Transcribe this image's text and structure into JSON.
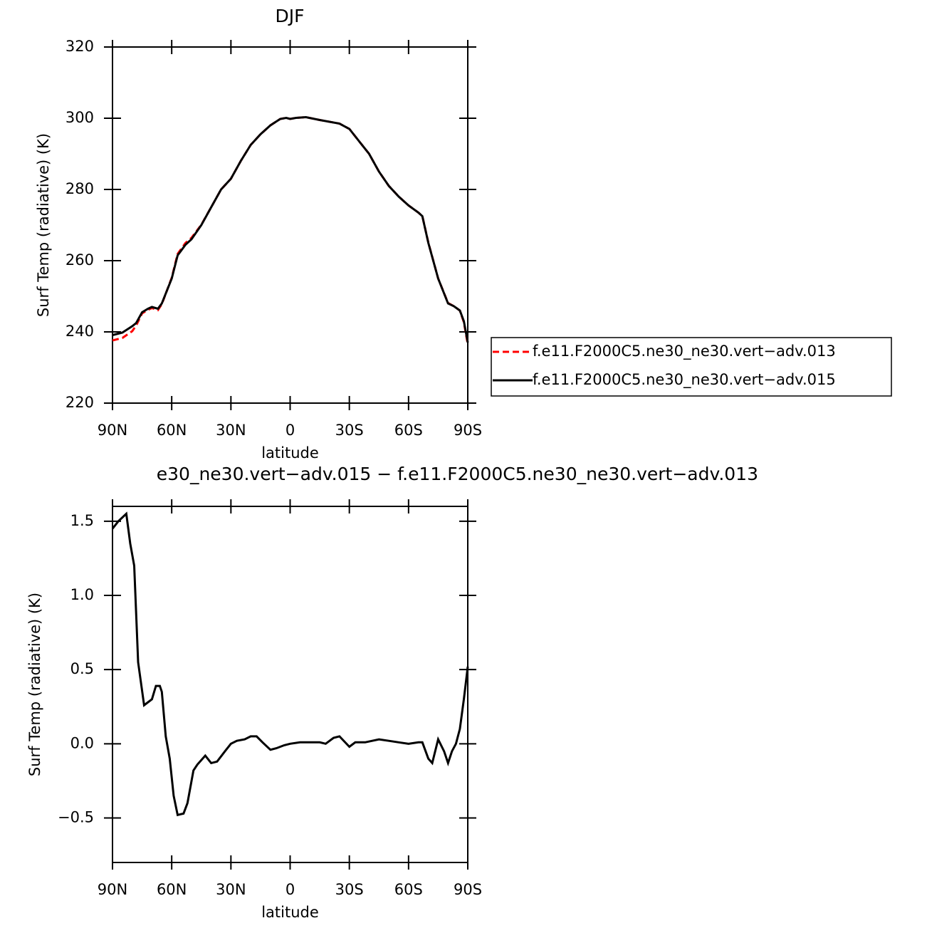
{
  "chart_data": [
    {
      "type": "line",
      "title": "DJF",
      "xlabel": "latitude",
      "ylabel": "Surf Temp (radiative) (K)",
      "xlim": [
        90,
        -90
      ],
      "ylim": [
        220,
        320
      ],
      "xticks": [
        {
          "value": 90,
          "label": "90N"
        },
        {
          "value": 60,
          "label": "60N"
        },
        {
          "value": 30,
          "label": "30N"
        },
        0,
        {
          "value": -30,
          "label": "30S"
        },
        {
          "value": -60,
          "label": "60S"
        },
        {
          "value": -90,
          "label": "90S"
        }
      ],
      "yticks": [
        220,
        240,
        260,
        280,
        300,
        320
      ],
      "x": [
        90,
        85,
        80,
        78,
        75,
        72,
        70,
        67,
        65,
        60,
        57,
        53,
        50,
        45,
        40,
        35,
        30,
        25,
        20,
        15,
        10,
        5,
        2,
        0,
        -3,
        -8,
        -15,
        -25,
        -30,
        -35,
        -40,
        -45,
        -50,
        -55,
        -60,
        -65,
        -67,
        -70,
        -75,
        -80,
        -83,
        -86,
        -88,
        -90
      ],
      "series": [
        {
          "name": "f.e11.F2000C5.ne30_ne30.vert−adv.013",
          "color": "#ff0000",
          "dashed": true,
          "values": [
            237.6,
            238.3,
            240.2,
            241.8,
            245.2,
            246.2,
            246.7,
            246.1,
            247.8,
            255.2,
            261.9,
            265,
            266.4,
            270.1,
            275,
            280,
            283,
            288,
            292.5,
            295.5,
            298,
            299.8,
            300.1,
            299.8,
            300.1,
            300.3,
            299.5,
            298.5,
            297,
            293.5,
            290,
            285,
            281,
            278,
            275.5,
            273.5,
            272.5,
            265.1,
            255,
            248.1,
            247.2,
            246,
            242.7,
            236.5
          ]
        },
        {
          "name": "f.e11.F2000C5.ne30_ne30.vert−adv.015",
          "color": "#000000",
          "dashed": false,
          "values": [
            239.1,
            239.8,
            241.6,
            242.5,
            245.5,
            246.5,
            247,
            246.5,
            248,
            255,
            261.5,
            264.5,
            266,
            270,
            275,
            280,
            283,
            288,
            292.5,
            295.5,
            298,
            299.8,
            300.1,
            299.8,
            300.1,
            300.3,
            299.5,
            298.5,
            297,
            293.5,
            290,
            285,
            281,
            278,
            275.5,
            273.5,
            272.5,
            265,
            255,
            248,
            247.2,
            246,
            243,
            237
          ]
        }
      ]
    },
    {
      "type": "line",
      "title": "e30_ne30.vert−adv.015 − f.e11.F2000C5.ne30_ne30.vert−adv.013",
      "xlabel": "latitude",
      "ylabel": "Surf Temp (radiative) (K)",
      "xlim": [
        90,
        -90
      ],
      "ylim": [
        -0.8,
        1.6
      ],
      "xticks": [
        {
          "value": 90,
          "label": "90N"
        },
        {
          "value": 60,
          "label": "60N"
        },
        {
          "value": 30,
          "label": "30N"
        },
        0,
        {
          "value": -30,
          "label": "30S"
        },
        {
          "value": -60,
          "label": "60S"
        },
        {
          "value": -90,
          "label": "90S"
        }
      ],
      "yticks": [
        {
          "value": -0.5,
          "label": "−0.5"
        },
        {
          "value": 0,
          "label": "0.0"
        },
        0.5,
        {
          "value": 1,
          "label": "1.0"
        },
        1.5
      ],
      "x": [
        90,
        87,
        83,
        81,
        79,
        77,
        74,
        72,
        70,
        68,
        66,
        65,
        63,
        61,
        59,
        57,
        54,
        52,
        49,
        47,
        43,
        40,
        37,
        33,
        30,
        27,
        23,
        20,
        17,
        14,
        10,
        7,
        3,
        0,
        -5,
        -10,
        -15,
        -18,
        -22,
        -25,
        -30,
        -33,
        -38,
        -45,
        -50,
        -55,
        -60,
        -65,
        -67,
        -70,
        -72,
        -75,
        -78,
        -80,
        -82,
        -84,
        -86,
        -88,
        -90
      ],
      "series": [
        {
          "color": "#000000",
          "dashed": false,
          "values": [
            1.45,
            1.5,
            1.55,
            1.35,
            1.2,
            0.55,
            0.26,
            0.28,
            0.3,
            0.39,
            0.39,
            0.35,
            0.05,
            -0.1,
            -0.35,
            -0.48,
            -0.47,
            -0.4,
            -0.18,
            -0.14,
            -0.08,
            -0.13,
            -0.12,
            -0.05,
            0,
            0.02,
            0.03,
            0.05,
            0.05,
            0.01,
            -0.04,
            -0.03,
            -0.01,
            0,
            0.01,
            0.01,
            0.01,
            0,
            0.04,
            0.05,
            -0.02,
            0.01,
            0.01,
            0.03,
            0.02,
            0.01,
            0,
            0.01,
            0.01,
            -0.1,
            -0.13,
            0.03,
            -0.05,
            -0.13,
            -0.05,
            0,
            0.1,
            0.3,
            0.52
          ]
        }
      ]
    }
  ]
}
